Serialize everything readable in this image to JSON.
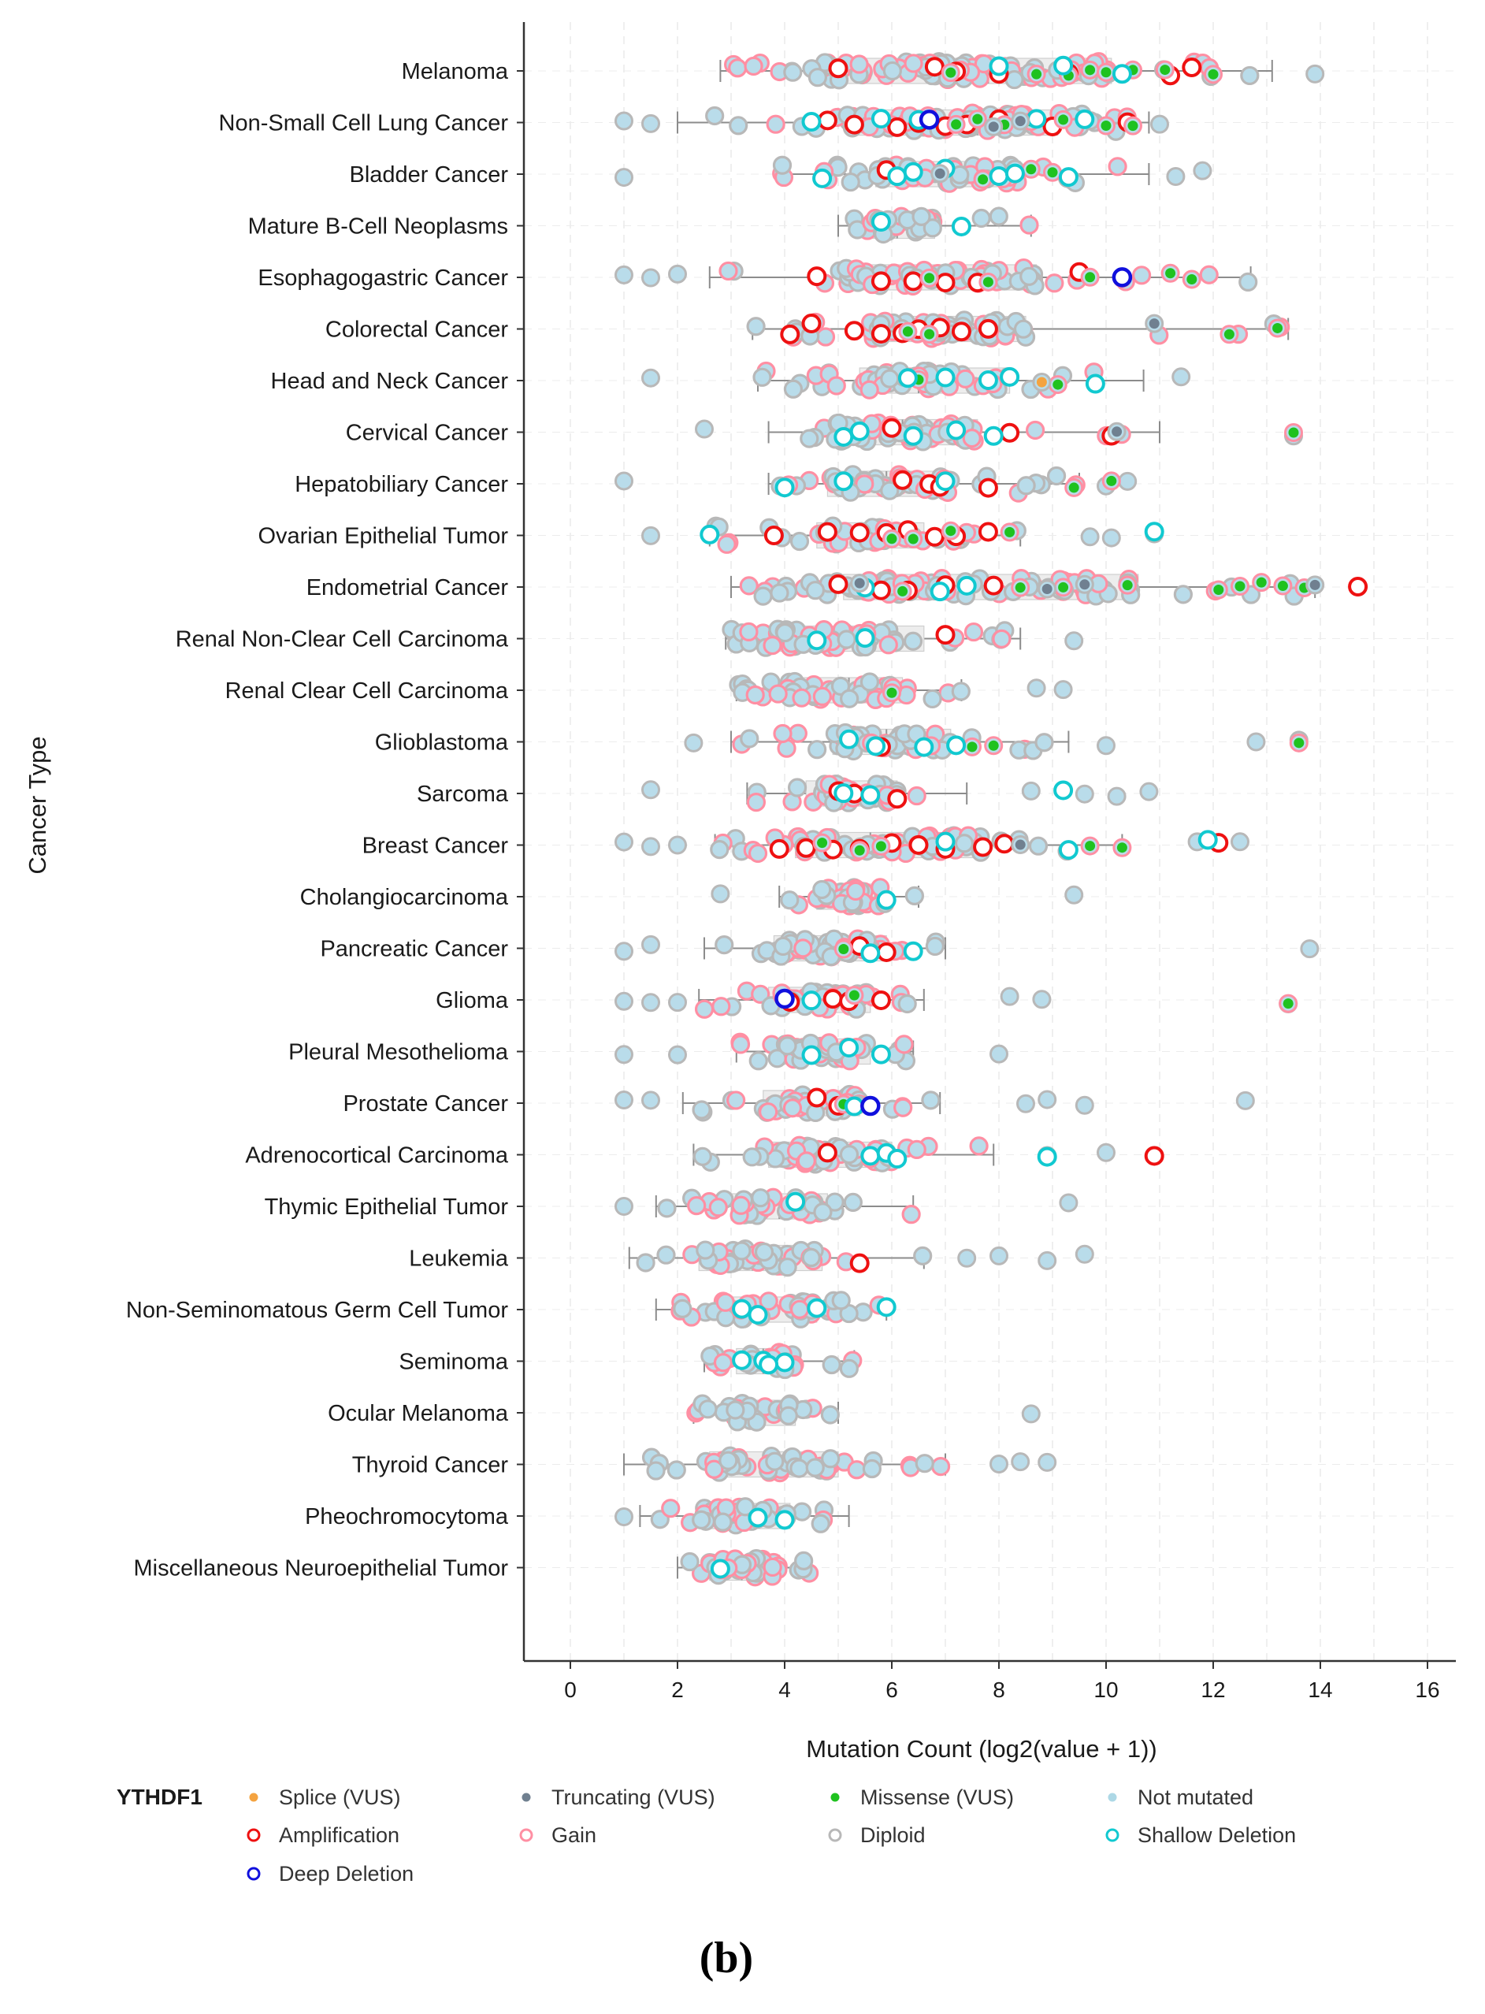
{
  "chart_data": {
    "type": "scatter",
    "title": "",
    "xlabel": "Mutation Count (log2(value + 1))",
    "ylabel": "Cancer Type",
    "xlim": [
      -0.9,
      16.5
    ],
    "xticks": [
      0,
      2,
      4,
      6,
      8,
      10,
      12,
      14,
      16
    ],
    "grid": true,
    "gene": "YTHDF1",
    "panel_label": "(b)",
    "categories": [
      "Melanoma",
      "Non-Small Cell Lung Cancer",
      "Bladder Cancer",
      "Mature B-Cell Neoplasms",
      "Esophagogastric Cancer",
      "Colorectal Cancer",
      "Head and Neck Cancer",
      "Cervical Cancer",
      "Hepatobiliary Cancer",
      "Ovarian Epithelial Tumor",
      "Endometrial Cancer",
      "Renal Non-Clear Cell Carcinoma",
      "Renal Clear Cell Carcinoma",
      "Glioblastoma",
      "Sarcoma",
      "Breast Cancer",
      "Cholangiocarcinoma",
      "Pancreatic Cancer",
      "Glioma",
      "Pleural Mesothelioma",
      "Prostate Cancer",
      "Adrenocortical Carcinoma",
      "Thymic Epithelial Tumor",
      "Leukemia",
      "Non-Seminomatous Germ Cell Tumor",
      "Seminoma",
      "Ocular Melanoma",
      "Thyroid Cancer",
      "Pheochromocytoma",
      "Miscellaneous Neuroepithelial Tumor"
    ],
    "boxes": [
      {
        "min": 2.8,
        "q1": 4.6,
        "median": 7.8,
        "q3": 10.1,
        "max": 13.1,
        "outliers": [
          13.9
        ]
      },
      {
        "min": 2.0,
        "q1": 5.2,
        "median": 7.6,
        "q3": 9.1,
        "max": 10.8,
        "outliers": [
          1.0,
          1.5,
          11.0
        ]
      },
      {
        "min": 3.9,
        "q1": 5.7,
        "median": 7.0,
        "q3": 8.4,
        "max": 10.8,
        "outliers": [
          1.0,
          11.3,
          11.8
        ]
      },
      {
        "min": 5.0,
        "q1": 5.6,
        "median": 6.1,
        "q3": 6.8,
        "max": 8.6,
        "outliers": []
      },
      {
        "min": 2.6,
        "q1": 5.1,
        "median": 6.9,
        "q3": 8.7,
        "max": 12.7,
        "outliers": [
          1.0,
          1.5,
          2.0
        ]
      },
      {
        "min": 3.4,
        "q1": 5.6,
        "median": 6.6,
        "q3": 8.5,
        "max": 13.4,
        "outliers": []
      },
      {
        "min": 3.5,
        "q1": 5.4,
        "median": 6.5,
        "q3": 8.2,
        "max": 10.7,
        "outliers": [
          1.5,
          11.4
        ]
      },
      {
        "min": 3.7,
        "q1": 5.0,
        "median": 6.2,
        "q3": 7.6,
        "max": 11.0,
        "outliers": [
          2.5,
          13.5
        ]
      },
      {
        "min": 3.7,
        "q1": 4.8,
        "median": 5.9,
        "q3": 7.1,
        "max": 9.5,
        "outliers": [
          1.0,
          10.0,
          10.4
        ]
      },
      {
        "min": 2.6,
        "q1": 4.6,
        "median": 5.6,
        "q3": 6.6,
        "max": 8.4,
        "outliers": [
          1.5,
          9.7,
          10.1,
          10.9
        ]
      },
      {
        "min": 3.0,
        "q1": 5.1,
        "median": 6.9,
        "q3": 10.6,
        "max": 13.9,
        "outliers": [
          14.7
        ]
      },
      {
        "min": 2.9,
        "q1": 3.8,
        "median": 5.0,
        "q3": 6.6,
        "max": 8.4,
        "outliers": [
          9.4
        ]
      },
      {
        "min": 3.1,
        "q1": 4.0,
        "median": 5.2,
        "q3": 6.2,
        "max": 7.3,
        "outliers": [
          8.7,
          9.2
        ]
      },
      {
        "min": 3.0,
        "q1": 4.9,
        "median": 5.9,
        "q3": 7.1,
        "max": 9.3,
        "outliers": [
          2.3,
          10.0,
          12.8,
          13.6
        ]
      },
      {
        "min": 3.3,
        "q1": 4.4,
        "median": 5.2,
        "q3": 6.1,
        "max": 7.4,
        "outliers": [
          1.5,
          8.6,
          9.6,
          10.2,
          10.8
        ]
      },
      {
        "min": 2.7,
        "q1": 4.2,
        "median": 5.6,
        "q3": 7.7,
        "max": 10.3,
        "outliers": [
          1.0,
          1.5,
          2.0,
          11.7,
          12.1,
          12.5
        ]
      },
      {
        "min": 3.9,
        "q1": 4.6,
        "median": 5.3,
        "q3": 5.9,
        "max": 6.5,
        "outliers": [
          2.8,
          9.4
        ]
      },
      {
        "min": 2.5,
        "q1": 3.8,
        "median": 5.0,
        "q3": 5.9,
        "max": 7.0,
        "outliers": [
          1.0,
          1.5,
          13.8
        ]
      },
      {
        "min": 2.4,
        "q1": 3.7,
        "median": 4.8,
        "q3": 5.6,
        "max": 6.6,
        "outliers": [
          1.0,
          1.5,
          2.0,
          8.2,
          8.8,
          13.4
        ]
      },
      {
        "min": 3.1,
        "q1": 3.9,
        "median": 4.7,
        "q3": 5.6,
        "max": 6.4,
        "outliers": [
          1.0,
          2.0,
          8.0
        ]
      },
      {
        "min": 2.1,
        "q1": 3.6,
        "median": 4.6,
        "q3": 5.4,
        "max": 6.9,
        "outliers": [
          1.0,
          1.5,
          8.5,
          8.9,
          9.6,
          12.6
        ]
      },
      {
        "min": 2.3,
        "q1": 3.7,
        "median": 4.8,
        "q3": 6.0,
        "max": 7.9,
        "outliers": [
          8.9,
          10.0,
          10.9
        ]
      },
      {
        "min": 1.6,
        "q1": 3.0,
        "median": 3.9,
        "q3": 4.8,
        "max": 6.4,
        "outliers": [
          1.0,
          9.3
        ]
      },
      {
        "min": 1.1,
        "q1": 2.4,
        "median": 3.4,
        "q3": 4.7,
        "max": 6.6,
        "outliers": [
          7.4,
          8.0,
          8.9,
          9.6
        ]
      },
      {
        "min": 1.6,
        "q1": 2.8,
        "median": 3.6,
        "q3": 4.6,
        "max": 5.9,
        "outliers": []
      },
      {
        "min": 2.5,
        "q1": 3.1,
        "median": 3.6,
        "q3": 4.2,
        "max": 5.3,
        "outliers": []
      },
      {
        "min": 2.3,
        "q1": 3.0,
        "median": 3.6,
        "q3": 4.2,
        "max": 5.0,
        "outliers": [
          8.6
        ]
      },
      {
        "min": 1.0,
        "q1": 2.6,
        "median": 3.8,
        "q3": 5.0,
        "max": 7.0,
        "outliers": [
          8.0,
          8.4,
          8.9
        ]
      },
      {
        "min": 1.3,
        "q1": 2.4,
        "median": 3.1,
        "q3": 4.1,
        "max": 5.2,
        "outliers": [
          1.0
        ]
      },
      {
        "min": 2.0,
        "q1": 2.6,
        "median": 3.2,
        "q3": 3.9,
        "max": 4.5,
        "outliers": []
      }
    ],
    "annotated_points": [
      {
        "category": "Melanoma",
        "type": "Amplification",
        "x": [
          5.0,
          6.8,
          7.2,
          8.0,
          9.3,
          11.2,
          11.6
        ]
      },
      {
        "category": "Melanoma",
        "type": "Missense (VUS)",
        "x": [
          7.1,
          8.7,
          9.3,
          9.7,
          10.0,
          10.5,
          11.1,
          12.0
        ]
      },
      {
        "category": "Melanoma",
        "type": "Shallow Deletion",
        "x": [
          8.0,
          9.2,
          10.3
        ]
      },
      {
        "category": "Non-Small Cell Lung Cancer",
        "type": "Amplification",
        "x": [
          4.8,
          5.3,
          6.1,
          6.5,
          7.0,
          7.4,
          8.0,
          9.0,
          10.4
        ]
      },
      {
        "category": "Non-Small Cell Lung Cancer",
        "type": "Missense (VUS)",
        "x": [
          7.2,
          7.6,
          8.1,
          8.6,
          9.2,
          10.0,
          10.5
        ]
      },
      {
        "category": "Non-Small Cell Lung Cancer",
        "type": "Shallow Deletion",
        "x": [
          4.5,
          5.8,
          6.5,
          8.7,
          9.6
        ]
      },
      {
        "category": "Non-Small Cell Lung Cancer",
        "type": "Deep Deletion",
        "x": [
          6.7
        ]
      },
      {
        "category": "Non-Small Cell Lung Cancer",
        "type": "Truncating (VUS)",
        "x": [
          7.9,
          8.4
        ]
      },
      {
        "category": "Bladder Cancer",
        "type": "Amplification",
        "x": [
          5.9
        ]
      },
      {
        "category": "Bladder Cancer",
        "type": "Missense (VUS)",
        "x": [
          7.7,
          8.6,
          9.0
        ]
      },
      {
        "category": "Bladder Cancer",
        "type": "Shallow Deletion",
        "x": [
          4.7,
          6.1,
          6.4,
          7.0,
          8.0,
          8.3,
          9.3
        ]
      },
      {
        "category": "Bladder Cancer",
        "type": "Truncating (VUS)",
        "x": [
          6.9
        ]
      },
      {
        "category": "Mature B-Cell Neoplasms",
        "type": "Shallow Deletion",
        "x": [
          5.8,
          7.3
        ]
      },
      {
        "category": "Esophagogastric Cancer",
        "type": "Amplification",
        "x": [
          4.6,
          5.8,
          6.4,
          7.0,
          7.6,
          9.5
        ]
      },
      {
        "category": "Esophagogastric Cancer",
        "type": "Missense (VUS)",
        "x": [
          6.7,
          7.8,
          9.7,
          10.3,
          11.2,
          11.6
        ]
      },
      {
        "category": "Esophagogastric Cancer",
        "type": "Deep Deletion",
        "x": [
          10.3
        ]
      },
      {
        "category": "Colorectal Cancer",
        "type": "Amplification",
        "x": [
          4.1,
          4.5,
          5.3,
          5.8,
          6.2,
          6.5,
          6.9,
          7.3,
          7.8
        ]
      },
      {
        "category": "Colorectal Cancer",
        "type": "Missense (VUS)",
        "x": [
          6.3,
          6.7,
          12.3,
          13.2
        ]
      },
      {
        "category": "Colorectal Cancer",
        "type": "Truncating (VUS)",
        "x": [
          10.9
        ]
      },
      {
        "category": "Head and Neck Cancer",
        "type": "Missense (VUS)",
        "x": [
          6.5,
          9.1
        ]
      },
      {
        "category": "Head and Neck Cancer",
        "type": "Shallow Deletion",
        "x": [
          6.3,
          7.0,
          7.8,
          8.2,
          9.8
        ]
      },
      {
        "category": "Head and Neck Cancer",
        "type": "Splice (VUS)",
        "x": [
          8.8
        ]
      },
      {
        "category": "Cervical Cancer",
        "type": "Amplification",
        "x": [
          6.0,
          8.2,
          10.1
        ]
      },
      {
        "category": "Cervical Cancer",
        "type": "Missense (VUS)",
        "x": [
          13.5
        ]
      },
      {
        "category": "Cervical Cancer",
        "type": "Shallow Deletion",
        "x": [
          5.1,
          5.4,
          6.4,
          7.2,
          7.9
        ]
      },
      {
        "category": "Cervical Cancer",
        "type": "Truncating (VUS)",
        "x": [
          10.2
        ]
      },
      {
        "category": "Hepatobiliary Cancer",
        "type": "Amplification",
        "x": [
          6.2,
          6.7,
          6.9,
          7.8
        ]
      },
      {
        "category": "Hepatobiliary Cancer",
        "type": "Missense (VUS)",
        "x": [
          9.4,
          10.1
        ]
      },
      {
        "category": "Hepatobiliary Cancer",
        "type": "Shallow Deletion",
        "x": [
          4.0,
          5.1,
          7.0
        ]
      },
      {
        "category": "Ovarian Epithelial Tumor",
        "type": "Amplification",
        "x": [
          3.8,
          4.8,
          5.4,
          5.9,
          6.3,
          6.8,
          7.2,
          7.8
        ]
      },
      {
        "category": "Ovarian Epithelial Tumor",
        "type": "Missense (VUS)",
        "x": [
          6.0,
          6.4,
          7.1,
          8.2
        ]
      },
      {
        "category": "Ovarian Epithelial Tumor",
        "type": "Shallow Deletion",
        "x": [
          2.6,
          10.9
        ]
      },
      {
        "category": "Endometrial Cancer",
        "type": "Amplification",
        "x": [
          5.0,
          5.8,
          6.3,
          7.0,
          7.9,
          14.7
        ]
      },
      {
        "category": "Endometrial Cancer",
        "type": "Missense (VUS)",
        "x": [
          6.2,
          8.4,
          9.2,
          10.4,
          12.1,
          12.5,
          12.9,
          13.3,
          13.7
        ]
      },
      {
        "category": "Endometrial Cancer",
        "type": "Shallow Deletion",
        "x": [
          5.5,
          6.9,
          7.4
        ]
      },
      {
        "category": "Endometrial Cancer",
        "type": "Truncating (VUS)",
        "x": [
          5.4,
          8.9,
          9.6,
          13.9
        ]
      },
      {
        "category": "Renal Non-Clear Cell Carcinoma",
        "type": "Amplification",
        "x": [
          7.0
        ]
      },
      {
        "category": "Renal Non-Clear Cell Carcinoma",
        "type": "Shallow Deletion",
        "x": [
          4.6,
          5.5
        ]
      },
      {
        "category": "Renal Clear Cell Carcinoma",
        "type": "Missense (VUS)",
        "x": [
          6.0
        ]
      },
      {
        "category": "Glioblastoma",
        "type": "Amplification",
        "x": [
          5.8
        ]
      },
      {
        "category": "Glioblastoma",
        "type": "Missense (VUS)",
        "x": [
          7.5,
          7.9,
          13.6
        ]
      },
      {
        "category": "Glioblastoma",
        "type": "Shallow Deletion",
        "x": [
          5.2,
          5.7,
          6.6,
          7.2
        ]
      },
      {
        "category": "Sarcoma",
        "type": "Amplification",
        "x": [
          5.0,
          5.3,
          6.1
        ]
      },
      {
        "category": "Sarcoma",
        "type": "Shallow Deletion",
        "x": [
          5.1,
          5.6,
          9.2
        ]
      },
      {
        "category": "Breast Cancer",
        "type": "Amplification",
        "x": [
          3.9,
          4.4,
          4.9,
          5.4,
          6.0,
          6.5,
          7.0,
          7.7,
          8.1,
          12.1
        ]
      },
      {
        "category": "Breast Cancer",
        "type": "Missense (VUS)",
        "x": [
          4.7,
          5.4,
          5.8,
          9.7,
          10.3
        ]
      },
      {
        "category": "Breast Cancer",
        "type": "Shallow Deletion",
        "x": [
          7.0,
          9.3,
          11.9
        ]
      },
      {
        "category": "Breast Cancer",
        "type": "Truncating (VUS)",
        "x": [
          8.4
        ]
      },
      {
        "category": "Cholangiocarcinoma",
        "type": "Shallow Deletion",
        "x": [
          5.9
        ]
      },
      {
        "category": "Pancreatic Cancer",
        "type": "Amplification",
        "x": [
          5.4,
          5.9
        ]
      },
      {
        "category": "Pancreatic Cancer",
        "type": "Missense (VUS)",
        "x": [
          5.1
        ]
      },
      {
        "category": "Pancreatic Cancer",
        "type": "Shallow Deletion",
        "x": [
          5.6,
          6.4
        ]
      },
      {
        "category": "Glioma",
        "type": "Amplification",
        "x": [
          4.1,
          4.9,
          5.2,
          5.8
        ]
      },
      {
        "category": "Glioma",
        "type": "Missense (VUS)",
        "x": [
          5.3,
          13.4
        ]
      },
      {
        "category": "Glioma",
        "type": "Shallow Deletion",
        "x": [
          4.5
        ]
      },
      {
        "category": "Glioma",
        "type": "Deep Deletion",
        "x": [
          4.0
        ]
      },
      {
        "category": "Pleural Mesothelioma",
        "type": "Shallow Deletion",
        "x": [
          4.5,
          5.2,
          5.8
        ]
      },
      {
        "category": "Prostate Cancer",
        "type": "Amplification",
        "x": [
          4.6,
          5.0
        ]
      },
      {
        "category": "Prostate Cancer",
        "type": "Missense (VUS)",
        "x": [
          5.1
        ]
      },
      {
        "category": "Prostate Cancer",
        "type": "Shallow Deletion",
        "x": [
          5.3
        ]
      },
      {
        "category": "Prostate Cancer",
        "type": "Deep Deletion",
        "x": [
          5.6
        ]
      },
      {
        "category": "Adrenocortical Carcinoma",
        "type": "Amplification",
        "x": [
          4.8,
          10.9
        ]
      },
      {
        "category": "Adrenocortical Carcinoma",
        "type": "Shallow Deletion",
        "x": [
          5.6,
          5.9,
          6.1,
          8.9
        ]
      },
      {
        "category": "Thymic Epithelial Tumor",
        "type": "Shallow Deletion",
        "x": [
          4.2
        ]
      },
      {
        "category": "Leukemia",
        "type": "Amplification",
        "x": [
          5.4
        ]
      },
      {
        "category": "Non-Seminomatous Germ Cell Tumor",
        "type": "Shallow Deletion",
        "x": [
          3.2,
          3.5,
          4.6,
          5.9
        ]
      },
      {
        "category": "Seminoma",
        "type": "Shallow Deletion",
        "x": [
          3.2,
          3.6,
          4.0,
          3.7
        ]
      },
      {
        "category": "Pheochromocytoma",
        "type": "Shallow Deletion",
        "x": [
          3.5,
          4.0
        ]
      },
      {
        "category": "Miscellaneous Neuroepithelial Tumor",
        "type": "Shallow Deletion",
        "x": [
          2.8
        ]
      }
    ],
    "legend": {
      "title": "YTHDF1",
      "position": "bottom",
      "entries": [
        {
          "label": "Splice (VUS)",
          "kind": "dot",
          "color": "#f4a340"
        },
        {
          "label": "Truncating (VUS)",
          "kind": "dot",
          "color": "#708090"
        },
        {
          "label": "Missense (VUS)",
          "kind": "dot",
          "color": "#1fc21f"
        },
        {
          "label": "Not mutated",
          "kind": "dot",
          "color": "#add8e6"
        },
        {
          "label": "Amplification",
          "kind": "ring",
          "color": "#ee1111"
        },
        {
          "label": "Gain",
          "kind": "ring",
          "color": "#ff8fa3"
        },
        {
          "label": "Diploid",
          "kind": "ring",
          "color": "#b8b8b8"
        },
        {
          "label": "Shallow Deletion",
          "kind": "ring",
          "color": "#11c9d0"
        },
        {
          "label": "Deep Deletion",
          "kind": "ring",
          "color": "#1010dd"
        }
      ]
    },
    "colors": {
      "not_mutated_fill": "#b9dcea",
      "diploid_ring": "#b8b8b8",
      "gain_ring": "#ff8fa3",
      "amplification": "#ee1111",
      "shallow_deletion": "#11c9d0",
      "deep_deletion": "#1010dd",
      "missense": "#1fc21f",
      "truncating": "#708090",
      "splice": "#f4a340"
    }
  }
}
